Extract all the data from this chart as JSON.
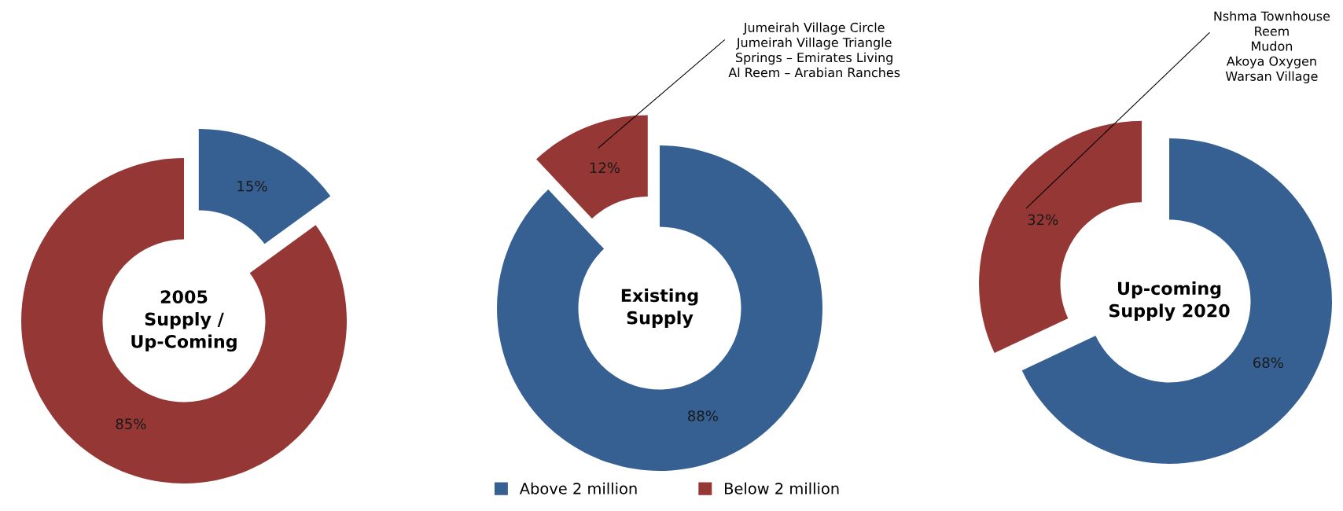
{
  "chart_data": [
    {
      "type": "donut",
      "title": "2005\nSupply /\nUp-Coming",
      "categories": [
        "Above 2 million",
        "Below 2 million"
      ],
      "values": [
        15,
        85
      ],
      "colors": [
        "#376092",
        "#953735"
      ],
      "value_labels": [
        "15%",
        "85%"
      ],
      "legend": "bottom"
    },
    {
      "type": "donut",
      "title": "Existing\nSupply",
      "categories": [
        null,
        null
      ],
      "values": [
        88,
        12
      ],
      "colors": [
        "#376092",
        "#953735"
      ],
      "value_labels": [
        "88%",
        "12%"
      ],
      "annotations": [
        "Jumeirah Village Circle\nJumeirah Village Triangle\nSprings – Emirates Living\nAl Reem – Arabian Ranches"
      ]
    },
    {
      "type": "donut",
      "title": "Up-coming\nSupply 2020",
      "categories": [
        null,
        null
      ],
      "values": [
        68,
        32
      ],
      "colors": [
        "#376092",
        "#953735"
      ],
      "value_labels": [
        "68%",
        "32%"
      ],
      "legend": false,
      "annotations": [
        "Nshma Townhouse\nReem\nMudon\nAkoya Oxygen\nWarsan Village"
      ]
    }
  ]
}
